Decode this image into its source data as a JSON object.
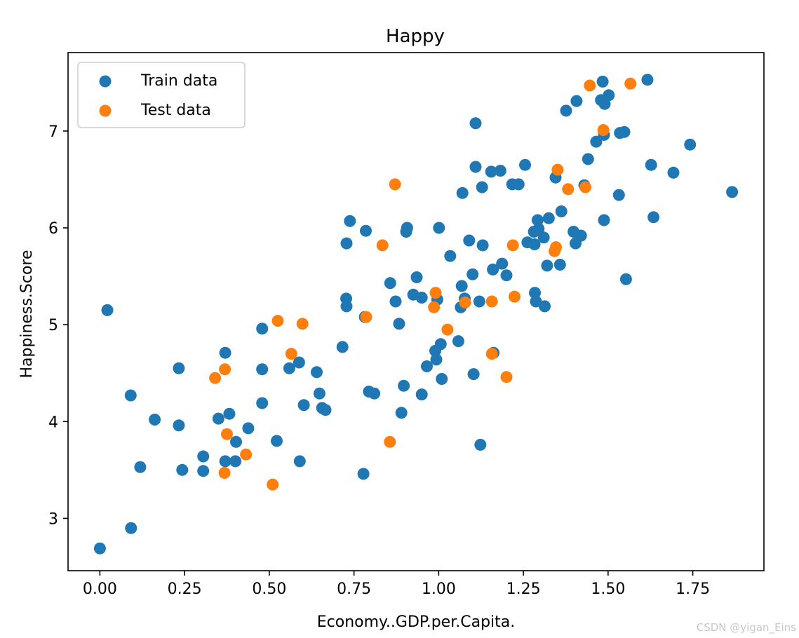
{
  "chart_data": {
    "type": "scatter",
    "title": "Happy",
    "xlabel": "Economy..GDP.per.Capita.",
    "ylabel": "Happiness.Score",
    "xlim": [
      -0.094,
      1.96
    ],
    "ylim": [
      2.46,
      7.81
    ],
    "xticks": [
      0.0,
      0.25,
      0.5,
      0.75,
      1.0,
      1.25,
      1.5,
      1.75
    ],
    "xtick_labels": [
      "0.00",
      "0.25",
      "0.50",
      "0.75",
      "1.00",
      "1.25",
      "1.50",
      "1.75"
    ],
    "yticks": [
      3,
      4,
      5,
      6,
      7
    ],
    "ytick_labels": [
      "3",
      "4",
      "5",
      "6",
      "7"
    ],
    "grid": false,
    "legend_position": "top-left",
    "series": [
      {
        "name": "Train data",
        "color": "#1f77b4",
        "points": [
          [
            0.0,
            2.69
          ],
          [
            0.092,
            2.9
          ],
          [
            0.022,
            5.15
          ],
          [
            0.091,
            4.27
          ],
          [
            0.119,
            3.53
          ],
          [
            0.162,
            4.02
          ],
          [
            0.233,
            4.55
          ],
          [
            0.233,
            3.96
          ],
          [
            0.243,
            3.5
          ],
          [
            0.305,
            3.64
          ],
          [
            0.305,
            3.49
          ],
          [
            0.35,
            4.03
          ],
          [
            0.37,
            4.71
          ],
          [
            0.37,
            3.59
          ],
          [
            0.382,
            4.08
          ],
          [
            0.4,
            3.59
          ],
          [
            0.402,
            3.79
          ],
          [
            0.438,
            3.93
          ],
          [
            0.479,
            4.96
          ],
          [
            0.479,
            4.54
          ],
          [
            0.479,
            4.19
          ],
          [
            0.522,
            3.8
          ],
          [
            0.559,
            4.55
          ],
          [
            0.588,
            4.61
          ],
          [
            0.59,
            3.59
          ],
          [
            0.602,
            4.17
          ],
          [
            0.64,
            4.51
          ],
          [
            0.648,
            4.29
          ],
          [
            0.656,
            4.14
          ],
          [
            0.666,
            4.12
          ],
          [
            0.716,
            4.77
          ],
          [
            0.727,
            5.27
          ],
          [
            0.728,
            5.19
          ],
          [
            0.728,
            5.84
          ],
          [
            0.738,
            6.07
          ],
          [
            0.778,
            3.46
          ],
          [
            0.782,
            5.08
          ],
          [
            0.785,
            5.97
          ],
          [
            0.794,
            4.31
          ],
          [
            0.81,
            4.29
          ],
          [
            0.857,
            5.43
          ],
          [
            0.873,
            5.24
          ],
          [
            0.883,
            5.01
          ],
          [
            0.89,
            4.09
          ],
          [
            0.897,
            4.37
          ],
          [
            0.904,
            5.96
          ],
          [
            0.907,
            6.0
          ],
          [
            0.925,
            5.31
          ],
          [
            0.935,
            5.49
          ],
          [
            0.95,
            5.28
          ],
          [
            0.95,
            4.28
          ],
          [
            0.965,
            4.57
          ],
          [
            0.99,
            4.73
          ],
          [
            0.993,
            4.64
          ],
          [
            0.996,
            5.26
          ],
          [
            1.001,
            6.0
          ],
          [
            1.006,
            4.8
          ],
          [
            1.009,
            4.44
          ],
          [
            1.034,
            5.71
          ],
          [
            1.058,
            4.83
          ],
          [
            1.065,
            5.18
          ],
          [
            1.068,
            5.4
          ],
          [
            1.07,
            6.36
          ],
          [
            1.077,
            5.27
          ],
          [
            1.09,
            5.87
          ],
          [
            1.1,
            5.52
          ],
          [
            1.103,
            4.49
          ],
          [
            1.109,
            7.08
          ],
          [
            1.109,
            6.63
          ],
          [
            1.12,
            5.24
          ],
          [
            1.123,
            3.76
          ],
          [
            1.128,
            6.42
          ],
          [
            1.13,
            5.82
          ],
          [
            1.155,
            6.58
          ],
          [
            1.16,
            5.57
          ],
          [
            1.162,
            4.71
          ],
          [
            1.182,
            6.59
          ],
          [
            1.187,
            5.63
          ],
          [
            1.2,
            5.51
          ],
          [
            1.217,
            6.45
          ],
          [
            1.236,
            6.45
          ],
          [
            1.255,
            6.65
          ],
          [
            1.262,
            5.85
          ],
          [
            1.281,
            5.96
          ],
          [
            1.283,
            5.83
          ],
          [
            1.284,
            5.33
          ],
          [
            1.287,
            5.24
          ],
          [
            1.292,
            6.08
          ],
          [
            1.295,
            5.99
          ],
          [
            1.31,
            5.9
          ],
          [
            1.313,
            5.19
          ],
          [
            1.32,
            5.61
          ],
          [
            1.325,
            6.1
          ],
          [
            1.345,
            6.52
          ],
          [
            1.358,
            5.62
          ],
          [
            1.362,
            6.17
          ],
          [
            1.376,
            7.21
          ],
          [
            1.398,
            5.96
          ],
          [
            1.404,
            5.84
          ],
          [
            1.407,
            7.31
          ],
          [
            1.42,
            5.92
          ],
          [
            1.43,
            6.44
          ],
          [
            1.441,
            6.71
          ],
          [
            1.465,
            6.89
          ],
          [
            1.479,
            7.32
          ],
          [
            1.484,
            7.51
          ],
          [
            1.488,
            6.96
          ],
          [
            1.488,
            6.08
          ],
          [
            1.49,
            7.28
          ],
          [
            1.502,
            7.37
          ],
          [
            1.532,
            6.34
          ],
          [
            1.535,
            6.98
          ],
          [
            1.548,
            6.99
          ],
          [
            1.553,
            5.47
          ],
          [
            1.616,
            7.53
          ],
          [
            1.627,
            6.65
          ],
          [
            1.634,
            6.11
          ],
          [
            1.693,
            6.57
          ],
          [
            1.742,
            6.86
          ],
          [
            1.866,
            6.37
          ]
        ]
      },
      {
        "name": "Test data",
        "color": "#ff7f0e",
        "points": [
          [
            0.34,
            4.45
          ],
          [
            0.368,
            3.47
          ],
          [
            0.369,
            4.54
          ],
          [
            0.375,
            3.87
          ],
          [
            0.431,
            3.66
          ],
          [
            0.51,
            3.35
          ],
          [
            0.525,
            5.04
          ],
          [
            0.565,
            4.7
          ],
          [
            0.598,
            5.01
          ],
          [
            0.786,
            5.08
          ],
          [
            0.834,
            5.82
          ],
          [
            0.856,
            3.79
          ],
          [
            0.871,
            6.45
          ],
          [
            0.986,
            5.18
          ],
          [
            0.991,
            5.33
          ],
          [
            1.026,
            4.95
          ],
          [
            1.078,
            5.23
          ],
          [
            1.157,
            4.7
          ],
          [
            1.157,
            5.24
          ],
          [
            1.2,
            4.46
          ],
          [
            1.219,
            5.82
          ],
          [
            1.224,
            5.29
          ],
          [
            1.342,
            5.76
          ],
          [
            1.346,
            5.8
          ],
          [
            1.351,
            6.6
          ],
          [
            1.382,
            6.4
          ],
          [
            1.433,
            6.42
          ],
          [
            1.446,
            7.47
          ],
          [
            1.486,
            7.01
          ],
          [
            1.566,
            7.49
          ]
        ]
      }
    ]
  },
  "watermark": "CSDN @yigan_Eins"
}
